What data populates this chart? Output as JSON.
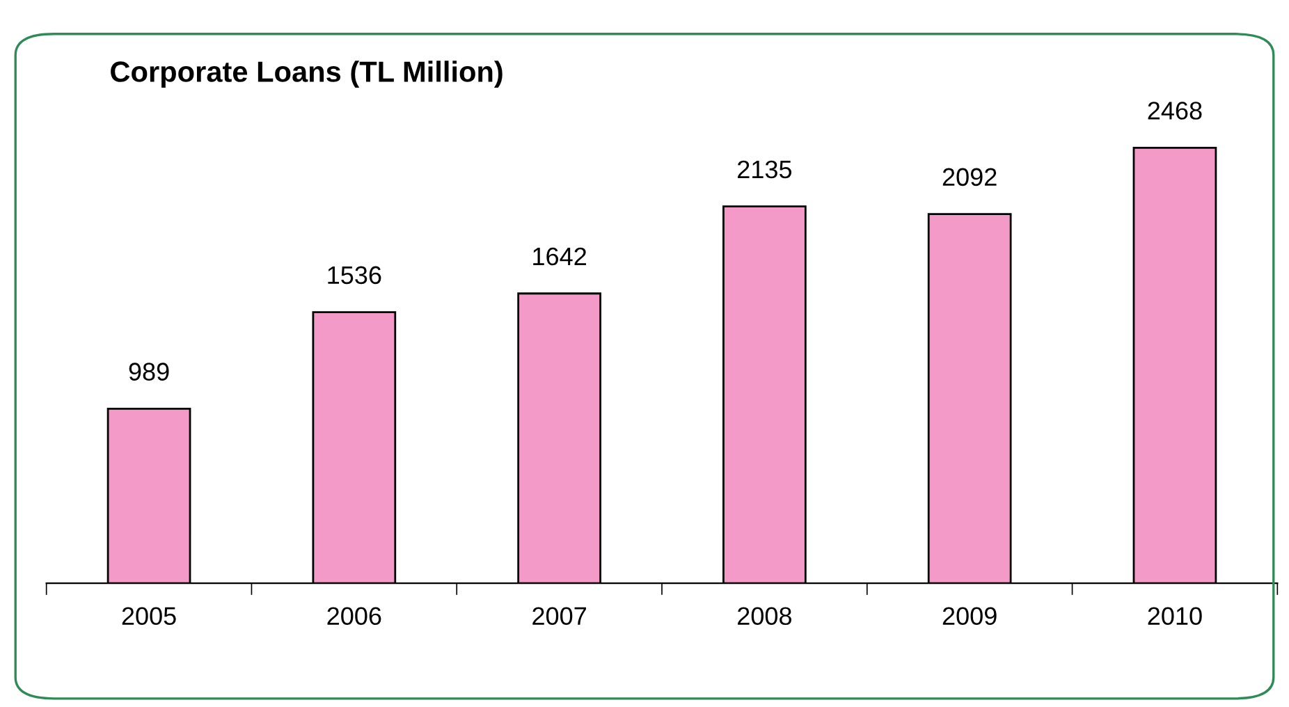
{
  "chart_data": {
    "type": "bar",
    "title": "Corporate Loans (TL Million)",
    "categories": [
      "2005",
      "2006",
      "2007",
      "2008",
      "2009",
      "2010"
    ],
    "values": [
      989,
      1536,
      1642,
      2135,
      2092,
      2468
    ],
    "color": "#f49ac8",
    "data_labels": true,
    "grid": false
  }
}
